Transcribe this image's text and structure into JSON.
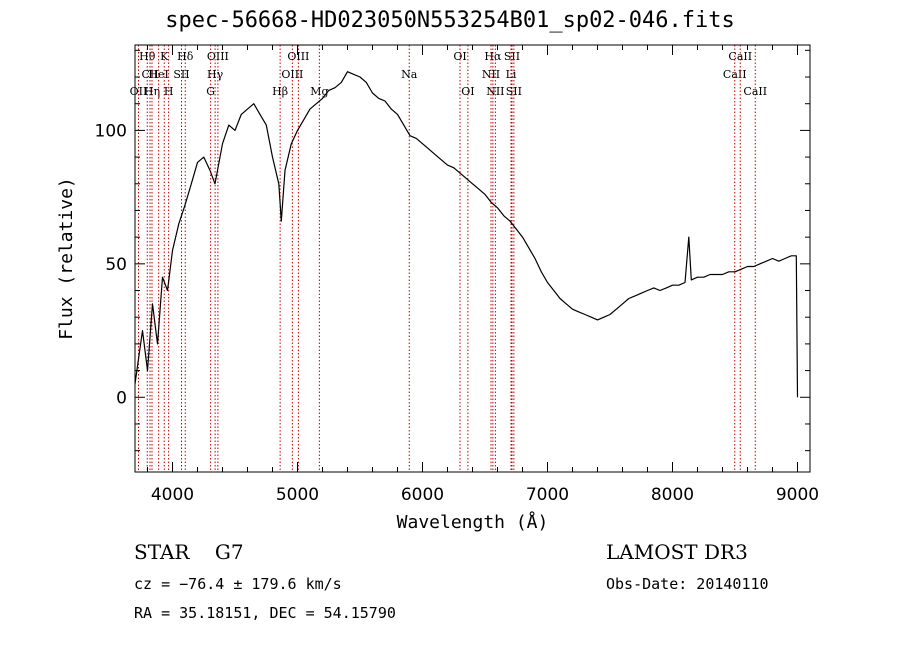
{
  "header": {
    "title": "spec-56668-HD023050N553254B01_sp02-046.fits"
  },
  "info": {
    "object_class": "STAR",
    "subclass": "G7",
    "velocity": "cz = −76.4 ± 179.6 km/s",
    "coordinates": "RA =  35.18151, DEC =  54.15790",
    "survey": "LAMOST DR3",
    "obs_date": "Obs-Date: 20140110"
  },
  "chart_data": {
    "type": "line",
    "title": "spec-56668-HD023050N553254B01_sp02-046.fits",
    "xlabel": "Wavelength (Å)",
    "ylabel": "Flux (relative)",
    "xlim": [
      3700,
      9100
    ],
    "ylim": [
      -28,
      132
    ],
    "x_ticks": [
      4000,
      5000,
      6000,
      7000,
      8000,
      9000
    ],
    "y_ticks": [
      0,
      50,
      100
    ],
    "line_color": "#000000",
    "marker_color": "#cc0000",
    "spectrum": {
      "x": [
        3700,
        3760,
        3800,
        3840,
        3880,
        3920,
        3960,
        4000,
        4050,
        4100,
        4150,
        4200,
        4250,
        4300,
        4340,
        4400,
        4450,
        4500,
        4550,
        4600,
        4650,
        4700,
        4750,
        4800,
        4850,
        4870,
        4900,
        4950,
        5000,
        5050,
        5100,
        5150,
        5200,
        5250,
        5300,
        5350,
        5400,
        5450,
        5500,
        5550,
        5600,
        5650,
        5700,
        5750,
        5800,
        5850,
        5900,
        5950,
        6000,
        6050,
        6100,
        6150,
        6200,
        6250,
        6300,
        6350,
        6400,
        6450,
        6500,
        6550,
        6600,
        6650,
        6700,
        6750,
        6800,
        6850,
        6900,
        6950,
        7000,
        7050,
        7100,
        7150,
        7200,
        7250,
        7300,
        7350,
        7400,
        7450,
        7500,
        7550,
        7600,
        7650,
        7700,
        7750,
        7800,
        7850,
        7900,
        7950,
        8000,
        8050,
        8100,
        8130,
        8150,
        8200,
        8250,
        8300,
        8350,
        8400,
        8450,
        8500,
        8550,
        8600,
        8650,
        8700,
        8750,
        8800,
        8850,
        8900,
        8950,
        8990,
        9000
      ],
      "y": [
        5,
        25,
        10,
        35,
        20,
        45,
        40,
        55,
        65,
        72,
        80,
        88,
        90,
        85,
        80,
        95,
        102,
        100,
        106,
        108,
        110,
        106,
        102,
        90,
        80,
        66,
        85,
        95,
        100,
        104,
        108,
        110,
        112,
        115,
        116,
        118,
        122,
        121,
        120,
        118,
        114,
        112,
        111,
        108,
        106,
        102,
        98,
        97,
        95,
        93,
        91,
        89,
        87,
        86,
        84,
        82,
        80,
        78,
        76,
        73,
        71,
        68,
        66,
        63,
        60,
        56,
        52,
        47,
        43,
        40,
        37,
        35,
        33,
        32,
        31,
        30,
        29,
        30,
        31,
        33,
        35,
        37,
        38,
        39,
        40,
        41,
        40,
        41,
        42,
        42,
        43,
        60,
        44,
        45,
        45,
        46,
        46,
        46,
        47,
        47,
        48,
        49,
        49,
        50,
        51,
        52,
        51,
        52,
        53,
        53,
        0
      ]
    },
    "markers": [
      {
        "name": "Hθ",
        "wavelength": 3798,
        "row": 0
      },
      {
        "name": "CII",
        "wavelength": 3820,
        "row": 1
      },
      {
        "name": "OII",
        "wavelength": 3728,
        "row": 2
      },
      {
        "name": "Hη",
        "wavelength": 3836,
        "row": 2
      },
      {
        "name": "HeI",
        "wavelength": 3889,
        "row": 1
      },
      {
        "name": "K",
        "wavelength": 3934,
        "row": 0
      },
      {
        "name": "H",
        "wavelength": 3969,
        "row": 2
      },
      {
        "name": "SII",
        "wavelength": 4072,
        "row": 1
      },
      {
        "name": "Hδ",
        "wavelength": 4102,
        "row": 0
      },
      {
        "name": "G",
        "wavelength": 4305,
        "row": 2
      },
      {
        "name": "OIII",
        "wavelength": 4363,
        "row": 0
      },
      {
        "name": "Hγ",
        "wavelength": 4341,
        "row": 1
      },
      {
        "name": "Hβ",
        "wavelength": 4861,
        "row": 2
      },
      {
        "name": "OIII",
        "wavelength": 4959,
        "row": 1
      },
      {
        "name": "OIII",
        "wavelength": 5007,
        "row": 0
      },
      {
        "name": "Mg",
        "wavelength": 5175,
        "row": 2
      },
      {
        "name": "Na",
        "wavelength": 5894,
        "row": 1
      },
      {
        "name": "OI",
        "wavelength": 6300,
        "row": 0
      },
      {
        "name": "OI",
        "wavelength": 6363,
        "row": 2
      },
      {
        "name": "Hα",
        "wavelength": 6563,
        "row": 0
      },
      {
        "name": "NII",
        "wavelength": 6548,
        "row": 1
      },
      {
        "name": "NII",
        "wavelength": 6583,
        "row": 2
      },
      {
        "name": "SII",
        "wavelength": 6716,
        "row": 0
      },
      {
        "name": "Li",
        "wavelength": 6708,
        "row": 1
      },
      {
        "name": "SII",
        "wavelength": 6731,
        "row": 2
      },
      {
        "name": "CaII",
        "wavelength": 8498,
        "row": 1
      },
      {
        "name": "CaII",
        "wavelength": 8542,
        "row": 0
      },
      {
        "name": "CaII",
        "wavelength": 8662,
        "row": 2
      }
    ]
  }
}
